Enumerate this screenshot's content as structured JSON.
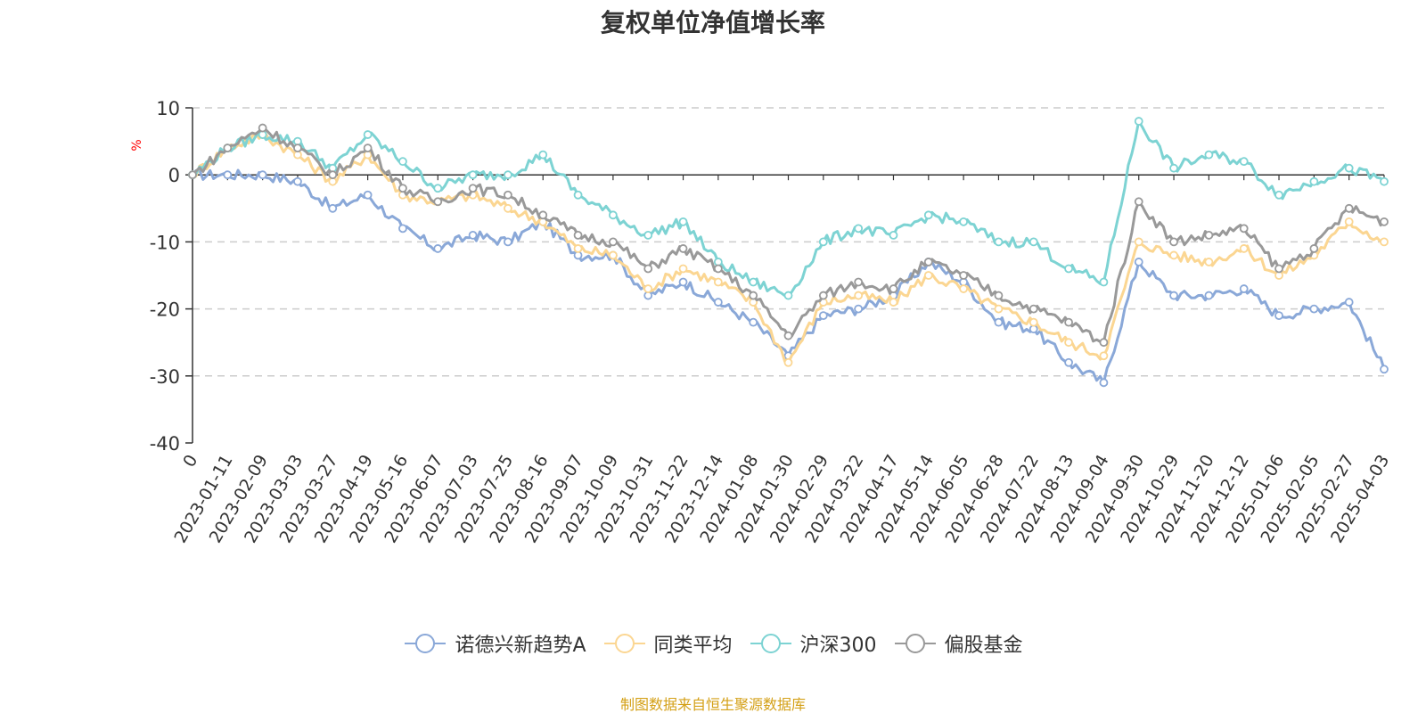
{
  "chart_data": {
    "type": "line",
    "title": "复权单位净值增长率",
    "ylabel": "%",
    "xlabel": "",
    "ylim": [
      -40,
      10
    ],
    "yticks": [
      -40,
      -30,
      -20,
      -10,
      0,
      10
    ],
    "grid": true,
    "legend_position": "bottom-center",
    "categories": [
      "0",
      "2023-01-11",
      "2023-02-09",
      "2023-03-03",
      "2023-03-27",
      "2023-04-19",
      "2023-05-16",
      "2023-06-07",
      "2023-07-03",
      "2023-07-25",
      "2023-08-16",
      "2023-09-07",
      "2023-10-09",
      "2023-10-31",
      "2023-11-22",
      "2023-12-14",
      "2024-01-08",
      "2024-01-30",
      "2024-02-29",
      "2024-03-22",
      "2024-04-17",
      "2024-05-14",
      "2024-06-05",
      "2024-06-28",
      "2024-07-22",
      "2024-08-13",
      "2024-09-04",
      "2024-09-30",
      "2024-10-29",
      "2024-11-20",
      "2024-12-12",
      "2025-01-06",
      "2025-02-05",
      "2025-02-27",
      "2025-04-03"
    ],
    "series": [
      {
        "name": "诺德兴新趋势A",
        "color": "#8aa8d8",
        "values": [
          0,
          0,
          0,
          -1,
          -5,
          -3,
          -8,
          -11,
          -9,
          -10,
          -7,
          -12,
          -12,
          -18,
          -16,
          -19,
          -22,
          -27,
          -21,
          -20,
          -18,
          -13,
          -16,
          -22,
          -23,
          -28,
          -31,
          -13,
          -18,
          -18,
          -17,
          -21,
          -20,
          -19,
          -29
        ]
      },
      {
        "name": "同类平均",
        "color": "#fbd692",
        "values": [
          0,
          4,
          6,
          3,
          -1,
          3,
          -3,
          -4,
          -3,
          -5,
          -7,
          -11,
          -12,
          -17,
          -14,
          -16,
          -19,
          -28,
          -19,
          -18,
          -19,
          -15,
          -17,
          -20,
          -22,
          -25,
          -27,
          -10,
          -12,
          -13,
          -11,
          -15,
          -12,
          -7,
          -10
        ]
      },
      {
        "name": "沪深300",
        "color": "#7dd3d3",
        "values": [
          0,
          4,
          6,
          5,
          1,
          6,
          2,
          -2,
          0,
          0,
          3,
          -3,
          -6,
          -9,
          -7,
          -13,
          -16,
          -18,
          -10,
          -8,
          -9,
          -6,
          -7,
          -10,
          -10,
          -14,
          -16,
          8,
          1,
          3,
          2,
          -3,
          -1,
          1,
          -1
        ]
      },
      {
        "name": "偏股基金",
        "color": "#999999",
        "values": [
          0,
          4,
          7,
          4,
          0,
          4,
          -2,
          -4,
          -2,
          -3,
          -6,
          -9,
          -10,
          -14,
          -11,
          -14,
          -18,
          -24,
          -18,
          -16,
          -17,
          -13,
          -15,
          -18,
          -20,
          -22,
          -25,
          -4,
          -10,
          -9,
          -8,
          -14,
          -11,
          -5,
          -7
        ]
      }
    ]
  },
  "source_note": "制图数据来自恒生聚源数据库"
}
